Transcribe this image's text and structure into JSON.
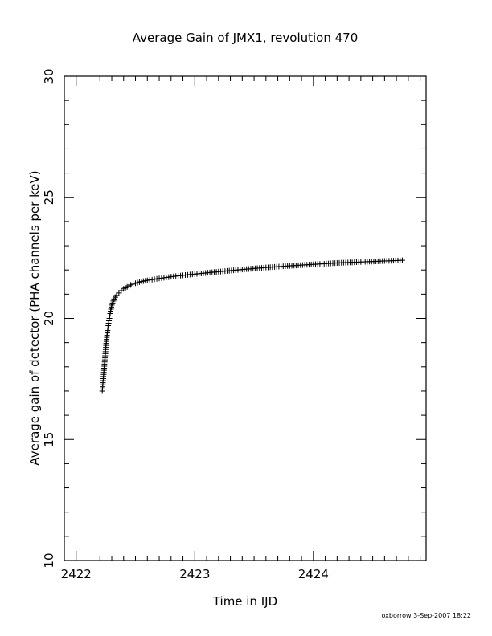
{
  "chart_data": {
    "type": "scatter",
    "title": "Average Gain of JMX1, revolution 470",
    "xlabel": "Time in IJD",
    "ylabel": "Average gain of detector (PHA channels per keV)",
    "xlim": [
      2421.9,
      2424.95
    ],
    "ylim": [
      10,
      30
    ],
    "x_ticks": [
      2422,
      2423,
      2424
    ],
    "y_ticks": [
      10,
      15,
      20,
      25,
      30
    ],
    "marker": "+",
    "marker_color": "#000000",
    "grid": false,
    "series": [
      {
        "x": [
          2422.22,
          2422.23,
          2422.24,
          2422.25,
          2422.26,
          2422.27,
          2422.28,
          2422.29,
          2422.3,
          2422.32,
          2422.34,
          2422.36,
          2422.38,
          2422.4,
          2422.43,
          2422.46,
          2422.5,
          2422.55,
          2422.6,
          2422.7,
          2422.8,
          2422.9,
          2423.0,
          2423.2,
          2423.4,
          2423.6,
          2423.8,
          2424.0,
          2424.2,
          2424.4,
          2424.6,
          2424.75
        ],
        "y": [
          17.0,
          17.6,
          18.2,
          18.8,
          19.3,
          19.7,
          20.0,
          20.3,
          20.55,
          20.8,
          20.95,
          21.05,
          21.15,
          21.22,
          21.3,
          21.38,
          21.45,
          21.52,
          21.57,
          21.65,
          21.72,
          21.78,
          21.83,
          21.93,
          22.02,
          22.1,
          22.17,
          22.23,
          22.29,
          22.33,
          22.37,
          22.4
        ]
      }
    ]
  },
  "footer": "oxborrow  3-Sep-2007 18:22"
}
